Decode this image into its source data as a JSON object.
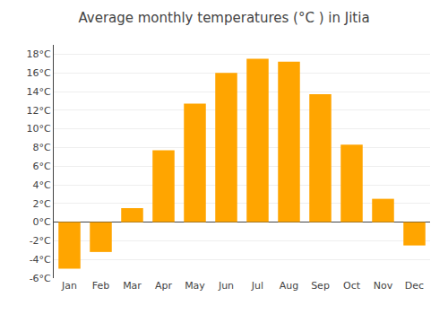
{
  "chart_data": {
    "type": "bar",
    "title": "Average monthly temperatures (°C ) in Jitia",
    "categories": [
      "Jan",
      "Feb",
      "Mar",
      "Apr",
      "May",
      "Jun",
      "Jul",
      "Aug",
      "Sep",
      "Oct",
      "Nov",
      "Dec"
    ],
    "values": [
      -5.0,
      -3.2,
      1.5,
      7.7,
      12.7,
      16.0,
      17.5,
      17.2,
      13.7,
      8.3,
      2.5,
      -2.5
    ],
    "color": "#FFA500",
    "ylim": [
      -6,
      19
    ],
    "yticks": [
      {
        "value": -6,
        "label": "-6°C"
      },
      {
        "value": -4,
        "label": "-4°C"
      },
      {
        "value": -2,
        "label": "-2°C"
      },
      {
        "value": 0,
        "label": "0°C"
      },
      {
        "value": 2,
        "label": "2°C"
      },
      {
        "value": 4,
        "label": "4°C"
      },
      {
        "value": 6,
        "label": "6°C"
      },
      {
        "value": 8,
        "label": "8°C"
      },
      {
        "value": 10,
        "label": "10°C"
      },
      {
        "value": 12,
        "label": "12°C"
      },
      {
        "value": 14,
        "label": "14°C"
      },
      {
        "value": 16,
        "label": "16°C"
      },
      {
        "value": 18,
        "label": "18°C"
      }
    ],
    "grid": true
  }
}
